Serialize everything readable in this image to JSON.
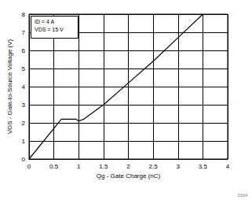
{
  "chart_data": {
    "type": "line",
    "x_label": "Qg - Gate Charge (nC)",
    "y_label": "VGS - Gate-to-Source Voltage (V)",
    "annotation": [
      "ID = 4 A",
      "VDS = 15 V"
    ],
    "figure_label": "D004",
    "x": [
      0,
      0.65,
      0.7,
      0.95,
      1.0,
      1.1,
      1.25,
      1.5,
      2.0,
      2.5,
      3.0,
      3.5
    ],
    "values": [
      0,
      2.2,
      2.2,
      2.2,
      2.1,
      2.2,
      2.5,
      3.0,
      4.2,
      5.4,
      6.7,
      8.0
    ],
    "color": "#000000",
    "xlim": [
      0,
      4
    ],
    "xticks": [
      0,
      0.5,
      1,
      1.5,
      2,
      2.5,
      3,
      3.5,
      4
    ],
    "ylim": [
      0,
      8
    ],
    "yticks": [
      0,
      1,
      2,
      3,
      4,
      5,
      6,
      7,
      8
    ],
    "grid": true
  }
}
